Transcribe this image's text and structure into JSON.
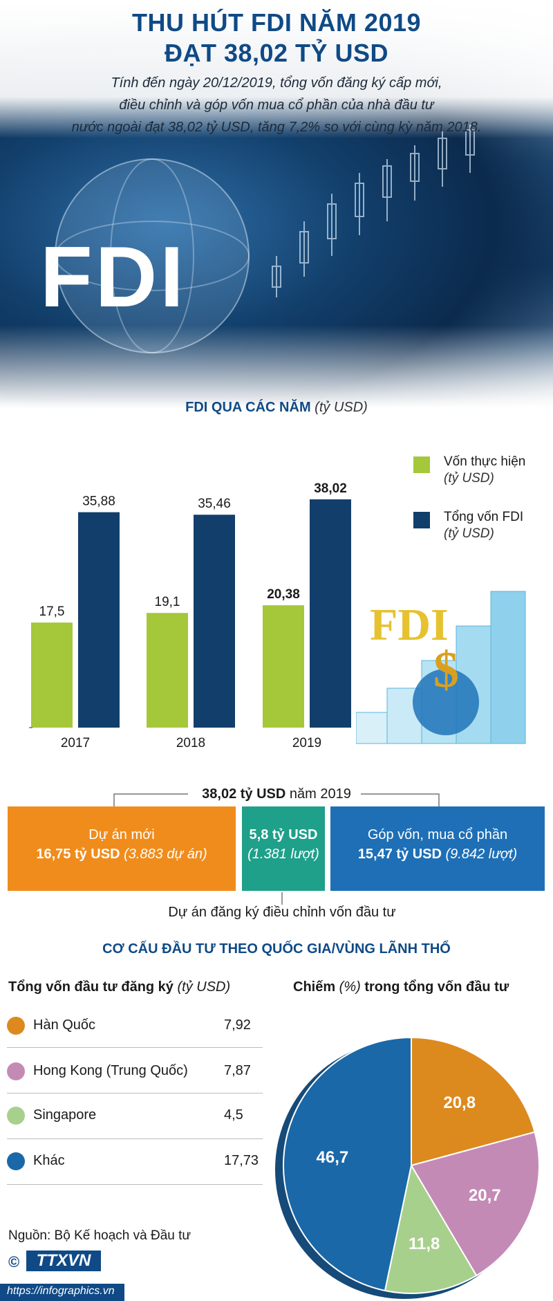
{
  "header": {
    "title_line1": "THU HÚT FDI NĂM 2019",
    "title_line2": "ĐẠT 38,02 TỶ USD",
    "intro_line1": "Tính đến ngày 20/12/2019, tổng vốn đăng ký cấp mới,",
    "intro_line2": "điều chỉnh và góp vốn mua cổ phần của nhà đầu tư",
    "intro_line3": "nước ngoài đạt 38,02 tỷ USD, tăng 7,2% so với cùng kỳ năm 2018.",
    "hero_text": "FDI"
  },
  "chart_section": {
    "title": "FDI QUA CÁC NĂM",
    "unit": "(tỷ USD)",
    "legend_realized": "Vốn thực hiện",
    "legend_realized_unit": "(tỷ USD)",
    "legend_total": "Tổng vốn FDI",
    "legend_total_unit": "(tỷ USD)",
    "illustration_text": "FDI",
    "illustration_dollar": "$"
  },
  "chart_data": [
    {
      "type": "bar",
      "categories": [
        "2017",
        "2018",
        "2019"
      ],
      "series": [
        {
          "name": "Vốn thực hiện",
          "values": [
            17.5,
            19.1,
            20.38
          ],
          "labels": [
            "17,5",
            "19,1",
            "20,38"
          ],
          "color": "#a4c839"
        },
        {
          "name": "Tổng vốn FDI",
          "values": [
            35.88,
            35.46,
            38.02
          ],
          "labels": [
            "35,88",
            "35,46",
            "38,02"
          ],
          "color": "#123e6b"
        }
      ],
      "title": "FDI QUA CÁC NĂM",
      "ylim": [
        0,
        40
      ]
    },
    {
      "type": "pie",
      "title": "Chiếm (%) trong tổng vốn đầu tư",
      "categories": [
        "Hàn Quốc",
        "Hong Kong (Trung Quốc)",
        "Singapore",
        "Khác"
      ],
      "values": [
        20.8,
        20.7,
        11.8,
        46.7
      ],
      "labels": [
        "20,8",
        "20,7",
        "11,8",
        "46,7"
      ],
      "colors": [
        "#dc8a1e",
        "#c48ab6",
        "#a8d08d",
        "#1a68a8"
      ]
    }
  ],
  "breakdown": {
    "total_value": "38,02 tỷ USD",
    "total_suffix": " năm 2019",
    "new_label": "Dự án mới",
    "new_value": "16,75 tỷ USD",
    "new_note": " (3.883 dự án)",
    "adjust_value": "5,8 tỷ USD",
    "adjust_note": "(1.381 lượt)",
    "contrib_label": "Góp vốn, mua cổ phần",
    "contrib_value": "15,47 tỷ USD",
    "contrib_note": " (9.842 lượt)",
    "adjust_caption": "Dự án đăng ký điều chỉnh vốn đầu tư",
    "colors": {
      "new": "#f08c1c",
      "adjust": "#1ea08a",
      "contrib": "#1e6fb6"
    }
  },
  "structure": {
    "title": "CƠ CẤU ĐẦU TƯ THEO QUỐC GIA/VÙNG LÃNH THỔ",
    "left_heading": "Tổng vốn đầu tư đăng ký",
    "left_unit": "(tỷ USD)",
    "right_heading_a": "Chiếm",
    "right_heading_b": " (%) ",
    "right_heading_c": "trong tổng vốn đầu tư",
    "countries": [
      {
        "name": "Hàn Quốc",
        "value": "7,92",
        "color": "#dc8a1e"
      },
      {
        "name": "Hong Kong (Trung Quốc)",
        "value": "7,87",
        "color": "#c48ab6"
      },
      {
        "name": "Singapore",
        "value": "4,5",
        "color": "#a8d08d"
      },
      {
        "name": "Khác",
        "value": "17,73",
        "color": "#1a68a8"
      }
    ]
  },
  "footer": {
    "source": "Nguồn: Bộ Kế hoạch và Đầu tư",
    "logo": "TTXVN",
    "copyright": "©",
    "url": "https://infographics.vn"
  }
}
